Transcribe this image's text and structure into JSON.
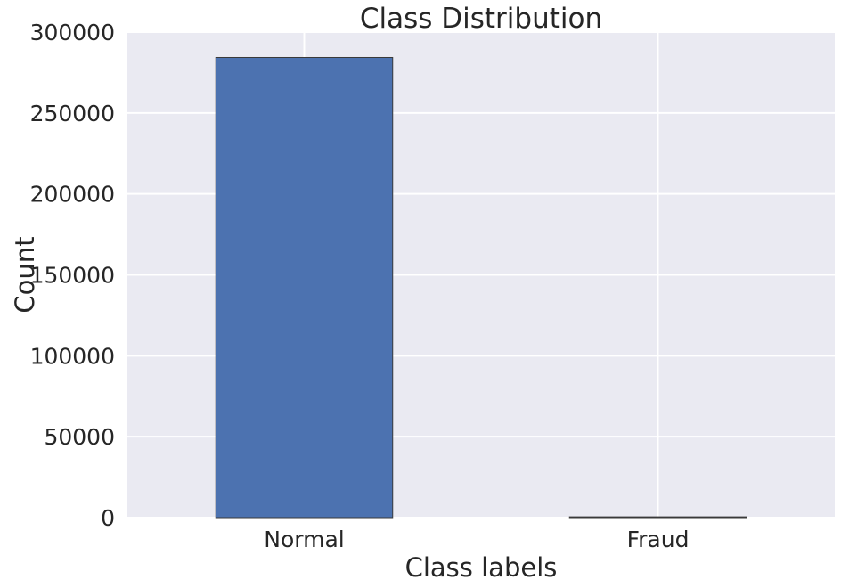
{
  "chart_data": {
    "type": "bar",
    "title": "Class Distribution",
    "xlabel": "Class labels",
    "ylabel": "Count",
    "categories": [
      "Normal",
      "Fraud"
    ],
    "values": [
      284315,
      492
    ],
    "ylim": [
      0,
      300000
    ],
    "yticks": [
      0,
      50000,
      100000,
      150000,
      200000,
      250000,
      300000
    ],
    "ytick_labels": [
      "0",
      "50000",
      "100000",
      "150000",
      "200000",
      "250000",
      "300000"
    ],
    "grid": true,
    "colors": {
      "bar": "#4c72b0",
      "bar_edge": "#3a3a3a",
      "plot_background": "#eaeaf2",
      "grid": "#ffffff"
    }
  }
}
